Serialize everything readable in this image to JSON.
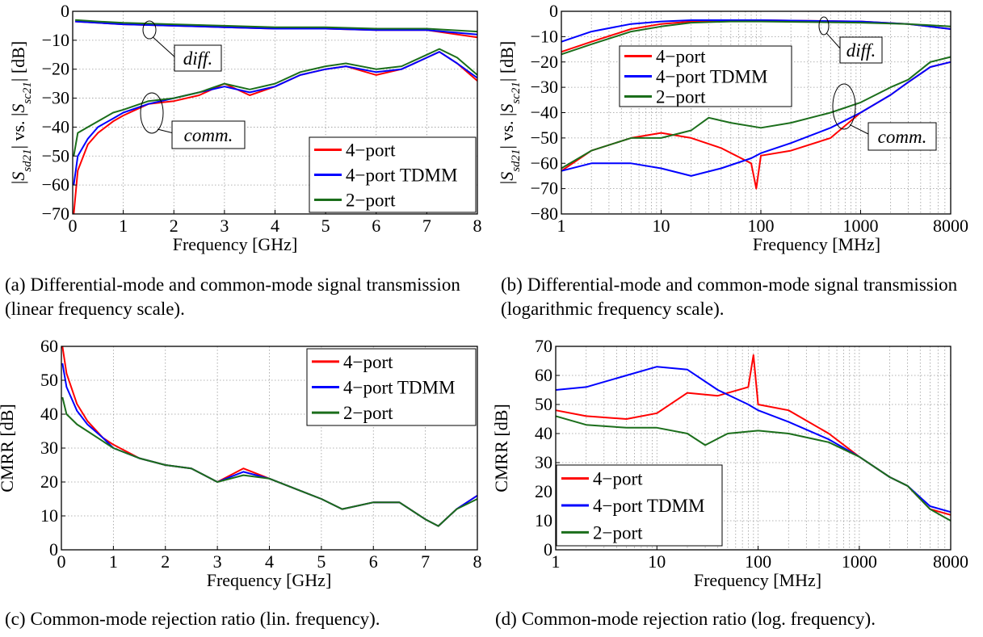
{
  "figure": {
    "series_names": [
      "4−port",
      "4−port TDMM",
      "2−port"
    ],
    "series_colors": [
      "#ff0000",
      "#0000ff",
      "#1b6e1b"
    ]
  },
  "captions": [
    {
      "label": "(a)",
      "text": "Differential-mode and common-mode signal transmission (linear frequency scale)."
    },
    {
      "label": "(b)",
      "text": "Differential-mode and common-mode signal transmission (logarithmic frequency scale)."
    },
    {
      "label": "(c)",
      "text": "Common-mode rejection ratio (lin. frequency)."
    },
    {
      "label": "(d)",
      "text": "Common-mode rejection ratio (log. frequency)."
    }
  ],
  "chart_data": [
    {
      "type": "line",
      "xscale": "linear",
      "xlabel": "Frequency [GHz]",
      "ylabel": "|S_sd21| vs. |S_sc21| [dB]",
      "xlim": [
        0,
        8
      ],
      "ylim": [
        -70,
        0
      ],
      "xticks": [
        0,
        1,
        2,
        3,
        4,
        5,
        6,
        7,
        8
      ],
      "yticks": [
        0,
        -10,
        -20,
        -30,
        -40,
        -50,
        -60,
        -70
      ],
      "xtick_labels": [
        "0",
        "1",
        "2",
        "3",
        "4",
        "5",
        "6",
        "7",
        "8"
      ],
      "ytick_labels": [
        "0",
        "−10",
        "−20",
        "−30",
        "−40",
        "−50",
        "−60",
        "−70"
      ],
      "grid": true,
      "legend": "bottom-right",
      "annotations": [
        "diff.",
        "comm."
      ],
      "series": [
        {
          "name": "4−port",
          "group": "diff.",
          "x": [
            0.05,
            0.5,
            1,
            2,
            3,
            4,
            5,
            6,
            7,
            8
          ],
          "y": [
            -3.5,
            -4,
            -4.5,
            -5,
            -5.5,
            -6,
            -6,
            -6.5,
            -6.5,
            -9
          ]
        },
        {
          "name": "4−port TDMM",
          "group": "diff.",
          "x": [
            0.05,
            0.5,
            1,
            2,
            3,
            4,
            5,
            6,
            7,
            8
          ],
          "y": [
            -3.5,
            -4,
            -4.5,
            -5,
            -5.5,
            -6,
            -6,
            -6.5,
            -6.5,
            -8
          ]
        },
        {
          "name": "2−port",
          "group": "diff.",
          "x": [
            0.05,
            0.5,
            1,
            2,
            3,
            4,
            5,
            6,
            7,
            8
          ],
          "y": [
            -3,
            -3.5,
            -4,
            -4.5,
            -5,
            -5.5,
            -5.5,
            -6,
            -6,
            -7
          ]
        },
        {
          "name": "4−port",
          "group": "comm.",
          "x": [
            0.02,
            0.1,
            0.3,
            0.5,
            0.8,
            1,
            1.5,
            2,
            2.5,
            3,
            3.5,
            4,
            4.5,
            5,
            5.4,
            6,
            6.5,
            7,
            7.25,
            7.6,
            8
          ],
          "y": [
            -70,
            -55,
            -46,
            -42,
            -38,
            -36,
            -32,
            -31,
            -29,
            -25,
            -29,
            -26,
            -22,
            -20,
            -19,
            -22,
            -20,
            -16,
            -14,
            -18,
            -24
          ]
        },
        {
          "name": "4−port TDMM",
          "group": "comm.",
          "x": [
            0.02,
            0.1,
            0.3,
            0.5,
            0.8,
            1,
            1.5,
            2,
            2.5,
            3,
            3.5,
            4,
            4.5,
            5,
            5.4,
            6,
            6.5,
            7,
            7.25,
            7.6,
            8
          ],
          "y": [
            -60,
            -50,
            -44,
            -40,
            -37,
            -35,
            -32,
            -30,
            -28,
            -26,
            -28,
            -26,
            -22,
            -20,
            -19,
            -21,
            -20,
            -16,
            -14,
            -18,
            -23
          ]
        },
        {
          "name": "2−port",
          "group": "comm.",
          "x": [
            0.02,
            0.1,
            0.3,
            0.5,
            0.8,
            1,
            1.5,
            2,
            2.5,
            3,
            3.5,
            4,
            4.5,
            5,
            5.4,
            6,
            6.5,
            7,
            7.25,
            7.6,
            8
          ],
          "y": [
            -50,
            -42,
            -40,
            -38,
            -35,
            -34,
            -31,
            -30,
            -28,
            -25,
            -27,
            -25,
            -21,
            -19,
            -18,
            -20,
            -19,
            -15,
            -13,
            -16,
            -22
          ]
        }
      ]
    },
    {
      "type": "line",
      "xscale": "log",
      "xlabel": "Frequency [MHz]",
      "ylabel": "|S_sd21| vs. |S_sc21| [dB]",
      "xlim": [
        1,
        8000
      ],
      "ylim": [
        -80,
        0
      ],
      "xticks": [
        1,
        10,
        100,
        1000,
        8000
      ],
      "yticks": [
        0,
        -10,
        -20,
        -30,
        -40,
        -50,
        -60,
        -70,
        -80
      ],
      "xtick_labels": [
        "1",
        "10",
        "100",
        "1000",
        "8000"
      ],
      "ytick_labels": [
        "0",
        "−10",
        "−20",
        "−30",
        "−40",
        "−50",
        "−60",
        "−70",
        "−80"
      ],
      "grid": true,
      "legend": "top-left",
      "annotations": [
        "diff.",
        "comm."
      ],
      "series": [
        {
          "name": "4−port",
          "group": "diff.",
          "x": [
            1,
            2,
            5,
            10,
            20,
            50,
            100,
            1000,
            3000,
            8000
          ],
          "y": [
            -16,
            -12,
            -7,
            -5,
            -4,
            -3.5,
            -3.5,
            -4,
            -5,
            -7
          ]
        },
        {
          "name": "4−port TDMM",
          "group": "diff.",
          "x": [
            1,
            2,
            5,
            10,
            20,
            50,
            100,
            1000,
            3000,
            8000
          ],
          "y": [
            -12,
            -8,
            -5,
            -4,
            -3.5,
            -3.5,
            -3.5,
            -4,
            -5,
            -7
          ]
        },
        {
          "name": "2−port",
          "group": "diff.",
          "x": [
            1,
            2,
            5,
            10,
            20,
            50,
            100,
            1000,
            3000,
            8000
          ],
          "y": [
            -17,
            -13,
            -8,
            -6,
            -4.5,
            -4,
            -4,
            -4.5,
            -5,
            -6
          ]
        },
        {
          "name": "4−port",
          "group": "comm.",
          "x": [
            1,
            2,
            5,
            10,
            20,
            40,
            80,
            90,
            100,
            200,
            500,
            1000,
            2000,
            3000,
            5000,
            8000
          ],
          "y": [
            -63,
            -55,
            -50,
            -48,
            -50,
            -54,
            -60,
            -70,
            -57,
            -55,
            -50,
            -40,
            -33,
            -28,
            -22,
            -20
          ]
        },
        {
          "name": "4−port TDMM",
          "group": "comm.",
          "x": [
            1,
            2,
            5,
            10,
            20,
            40,
            80,
            100,
            200,
            500,
            1000,
            2000,
            3000,
            5000,
            8000
          ],
          "y": [
            -63,
            -60,
            -60,
            -62,
            -65,
            -62,
            -58,
            -56,
            -52,
            -46,
            -40,
            -33,
            -28,
            -22,
            -20
          ]
        },
        {
          "name": "2−port",
          "group": "comm.",
          "x": [
            1,
            2,
            5,
            10,
            20,
            30,
            50,
            100,
            200,
            500,
            1000,
            2000,
            3000,
            5000,
            8000
          ],
          "y": [
            -62,
            -55,
            -50,
            -50,
            -47,
            -42,
            -44,
            -46,
            -44,
            -40,
            -36,
            -30,
            -27,
            -20,
            -18
          ]
        }
      ]
    },
    {
      "type": "line",
      "xscale": "linear",
      "xlabel": "Frequency [GHz]",
      "ylabel": "CMRR [dB]",
      "xlim": [
        0,
        8
      ],
      "ylim": [
        0,
        60
      ],
      "xticks": [
        0,
        1,
        2,
        3,
        4,
        5,
        6,
        7,
        8
      ],
      "yticks": [
        0,
        10,
        20,
        30,
        40,
        50,
        60
      ],
      "xtick_labels": [
        "0",
        "1",
        "2",
        "3",
        "4",
        "5",
        "6",
        "7",
        "8"
      ],
      "ytick_labels": [
        "0",
        "10",
        "20",
        "30",
        "40",
        "50",
        "60"
      ],
      "grid": true,
      "legend": "top-right",
      "series": [
        {
          "name": "4−port",
          "x": [
            0.02,
            0.1,
            0.3,
            0.5,
            0.8,
            1,
            1.5,
            2,
            2.5,
            3,
            3.5,
            4,
            4.5,
            5,
            5.4,
            6,
            6.5,
            7,
            7.25,
            7.6,
            8
          ],
          "y": [
            60,
            52,
            43,
            38,
            33,
            31,
            27,
            25,
            24,
            20,
            24,
            21,
            18,
            15,
            12,
            14,
            14,
            9,
            7,
            12,
            16
          ]
        },
        {
          "name": "4−port TDMM",
          "x": [
            0.02,
            0.1,
            0.3,
            0.5,
            0.8,
            1,
            1.5,
            2,
            2.5,
            3,
            3.5,
            4,
            4.5,
            5,
            5.4,
            6,
            6.5,
            7,
            7.25,
            7.6,
            8
          ],
          "y": [
            55,
            48,
            41,
            37,
            33,
            30,
            27,
            25,
            24,
            20,
            23,
            21,
            18,
            15,
            12,
            14,
            14,
            9,
            7,
            12,
            16
          ]
        },
        {
          "name": "2−port",
          "x": [
            0.02,
            0.1,
            0.3,
            0.5,
            0.8,
            1,
            1.5,
            2,
            2.5,
            3,
            3.5,
            4,
            4.5,
            5,
            5.4,
            6,
            6.5,
            7,
            7.25,
            7.6,
            8
          ],
          "y": [
            45,
            40,
            37,
            35,
            32,
            30,
            27,
            25,
            24,
            20,
            22,
            21,
            18,
            15,
            12,
            14,
            14,
            9,
            7,
            12,
            15
          ]
        }
      ]
    },
    {
      "type": "line",
      "xscale": "log",
      "xlabel": "Frequency [MHz]",
      "ylabel": "CMRR [dB]",
      "xlim": [
        1,
        8000
      ],
      "ylim": [
        0,
        70
      ],
      "xticks": [
        1,
        10,
        100,
        1000,
        8000
      ],
      "yticks": [
        0,
        10,
        20,
        30,
        40,
        50,
        60,
        70
      ],
      "xtick_labels": [
        "1",
        "10",
        "100",
        "1000",
        "8000"
      ],
      "ytick_labels": [
        "0",
        "10",
        "20",
        "30",
        "40",
        "50",
        "60",
        "70"
      ],
      "grid": true,
      "legend": "bottom-left",
      "series": [
        {
          "name": "4−port",
          "x": [
            1,
            2,
            5,
            10,
            20,
            40,
            80,
            90,
            100,
            200,
            500,
            1000,
            2000,
            3000,
            5000,
            8000
          ],
          "y": [
            48,
            46,
            45,
            47,
            54,
            53,
            56,
            67,
            50,
            48,
            40,
            32,
            25,
            22,
            14,
            12
          ]
        },
        {
          "name": "4−port TDMM",
          "x": [
            1,
            2,
            5,
            10,
            20,
            40,
            80,
            100,
            200,
            500,
            1000,
            2000,
            3000,
            5000,
            8000
          ],
          "y": [
            55,
            56,
            60,
            63,
            62,
            55,
            50,
            48,
            44,
            38,
            32,
            25,
            22,
            15,
            13
          ]
        },
        {
          "name": "2−port",
          "x": [
            1,
            2,
            5,
            10,
            20,
            30,
            50,
            100,
            200,
            500,
            1000,
            2000,
            3000,
            5000,
            8000
          ],
          "y": [
            46,
            43,
            42,
            42,
            40,
            36,
            40,
            41,
            40,
            37,
            32,
            25,
            22,
            14,
            10
          ]
        }
      ]
    }
  ]
}
